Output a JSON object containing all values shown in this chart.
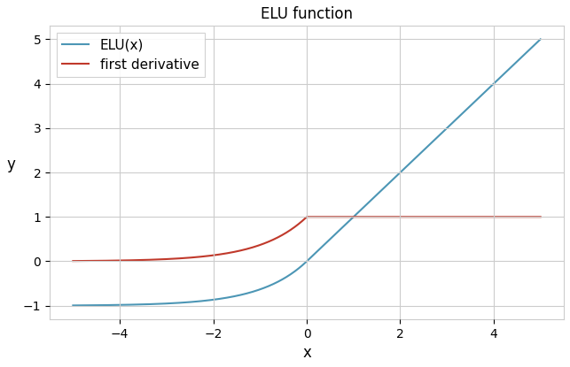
{
  "title": "ELU function",
  "xlabel": "x",
  "ylabel": "y",
  "alpha": 1.0,
  "x_min": -5,
  "x_max": 5,
  "ylim": [
    -1.3,
    5.3
  ],
  "xlim": [
    -5.5,
    5.5
  ],
  "elu_color": "#4c96b5",
  "deriv_color": "#c0392b",
  "elu_label": "ELU(x)",
  "deriv_label": "first derivative",
  "line_width": 1.5,
  "grid_color": "#cccccc",
  "grid_alpha": 1.0,
  "background_color": "#ffffff",
  "axes_facecolor": "#ffffff",
  "legend_fontsize": 11,
  "title_fontsize": 12,
  "tick_fontsize": 10,
  "label_fontsize": 12
}
